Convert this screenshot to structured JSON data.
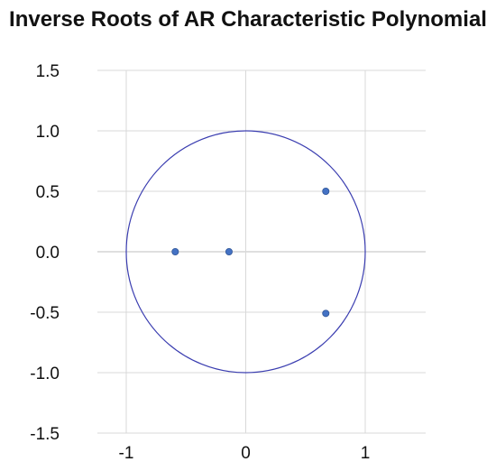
{
  "chart_data": {
    "type": "scatter",
    "title": "Inverse Roots of AR Characteristic Polynomial",
    "xlabel": "",
    "ylabel": "",
    "xlim": [
      -1.0,
      1.0
    ],
    "ylim": [
      -1.5,
      1.5
    ],
    "x_ticks": [
      -1,
      0,
      1
    ],
    "x_tick_labels": [
      "-1",
      "0",
      "1"
    ],
    "y_ticks": [
      1.5,
      1.0,
      0.5,
      0.0,
      -0.5,
      -1.0,
      -1.5
    ],
    "y_tick_labels": [
      "1.5",
      "1.0",
      "0.5",
      "0.0",
      "-0.5",
      "-1.0",
      "-1.5"
    ],
    "grid": true,
    "unit_circle": {
      "center": [
        0,
        0
      ],
      "radius": 1
    },
    "points": [
      {
        "x": -0.59,
        "y": 0.0
      },
      {
        "x": -0.14,
        "y": 0.0
      },
      {
        "x": 0.67,
        "y": 0.5
      },
      {
        "x": 0.67,
        "y": -0.51
      }
    ]
  },
  "colors": {
    "point": "#4472c4",
    "circle": "#3a3db0",
    "grid": "#d9d9d9",
    "axis": "#bfbfbf"
  }
}
